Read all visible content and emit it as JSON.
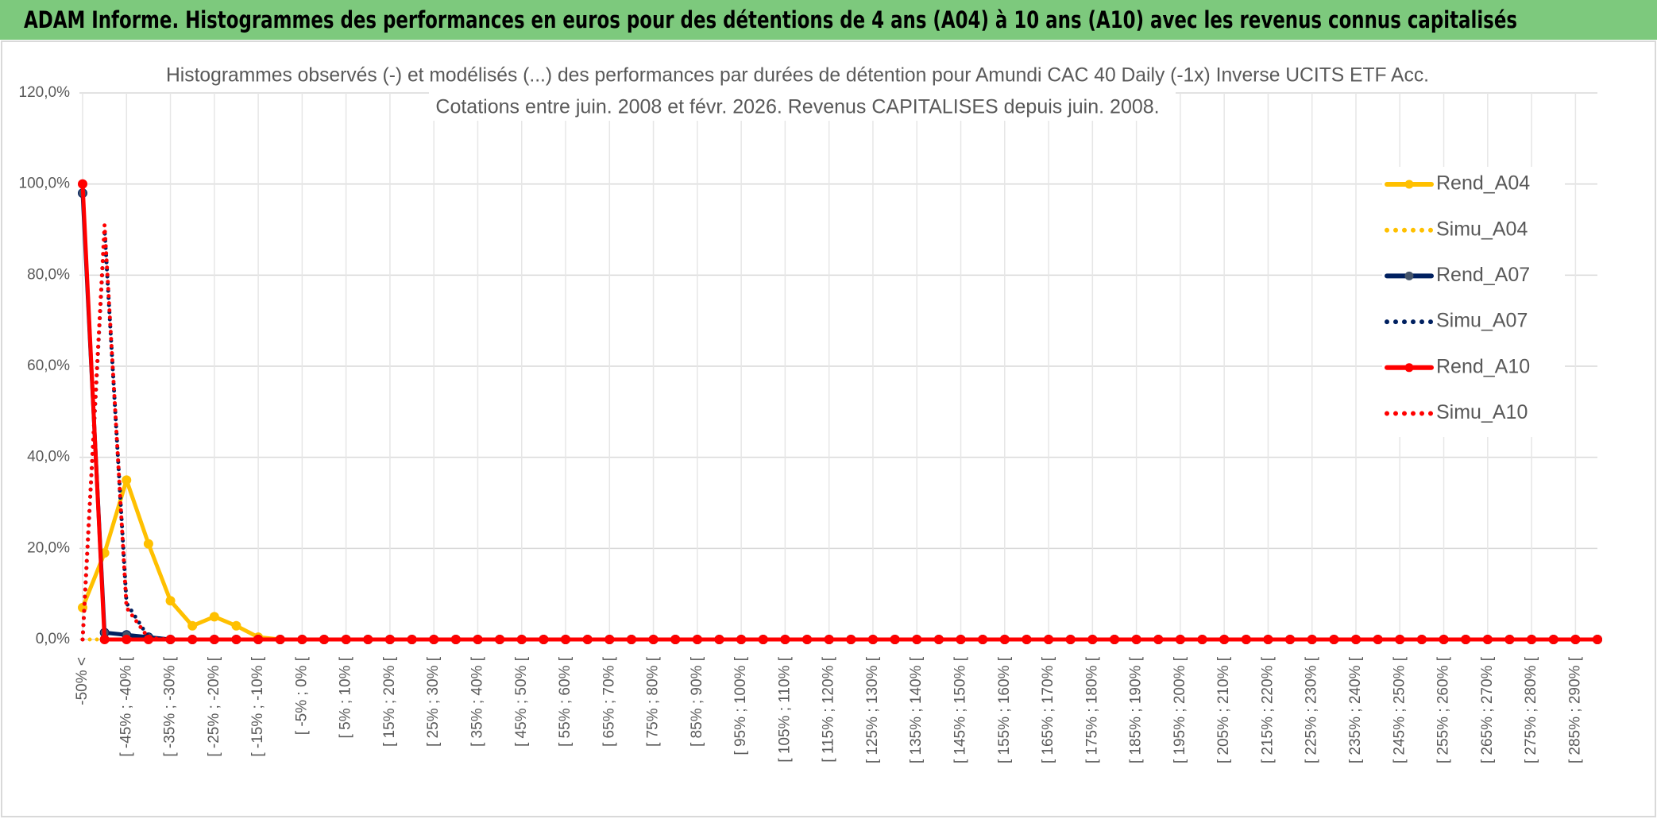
{
  "header": {
    "title": "ADAM Informe. Histogrammes des performances en euros pour des détentions de 4 ans (A04) à 10 ans (A10) avec les revenus connus capitalisés"
  },
  "chart_data": {
    "type": "line",
    "title": "Histogrammes observés (-) et modélisés (...) des performances par durées de détention pour Amundi CAC 40 Daily (-1x) Inverse UCITS ETF Acc.",
    "subtitle": "Cotations entre juin. 2008 et févr. 2026. Revenus CAPITALISES depuis juin. 2008.",
    "categories": [
      "-50% <",
      null,
      "[ -45% ; -40% [",
      null,
      "[ -35% ; -30% [",
      null,
      "[ -25% ; -20% [",
      null,
      "[ -15% ; -10% [",
      null,
      "[ -5% ; 0% [",
      null,
      "[ 5% ; 10% [",
      null,
      "[ 15% ; 20% [",
      null,
      "[ 25% ; 30% [",
      null,
      "[ 35% ; 40% [",
      null,
      "[ 45% ; 50% [",
      null,
      "[ 55% ; 60% [",
      null,
      "[ 65% ; 70% [",
      null,
      "[ 75% ; 80% [",
      null,
      "[ 85% ; 90% [",
      null,
      "[ 95% ; 100% [",
      null,
      "[ 105% ; 110% [",
      null,
      "[ 115% ; 120% [",
      null,
      "[ 125% ; 130% [",
      null,
      "[ 135% ; 140% [",
      null,
      "[ 145% ; 150% [",
      null,
      "[ 155% ; 160% [",
      null,
      "[ 165% ; 170% [",
      null,
      "[ 175% ; 180% [",
      null,
      "[ 185% ; 190% [",
      null,
      "[ 195% ; 200% [",
      null,
      "[ 205% ; 210% [",
      null,
      "[ 215% ; 220% [",
      null,
      "[ 225% ; 230% [",
      null,
      "[ 235% ; 240% [",
      null,
      "[ 245% ; 250% [",
      null,
      "[ 255% ; 260% [",
      null,
      "[ 265% ; 270% [",
      null,
      "[ 275% ; 280% [",
      null,
      "[ 285% ; 290% [",
      null
    ],
    "series": [
      {
        "name": "Rend_A04",
        "color": "#FFC000",
        "style": "solid",
        "values": [
          7,
          19,
          35,
          21,
          8.5,
          3,
          5,
          3,
          0.5,
          0,
          0,
          0,
          0,
          0,
          0,
          0,
          0,
          0,
          0,
          0,
          0,
          0,
          0,
          0,
          0,
          0,
          0,
          0,
          0,
          0,
          0,
          0,
          0,
          0,
          0,
          0,
          0,
          0,
          0,
          0,
          0,
          0,
          0,
          0,
          0,
          0,
          0,
          0,
          0,
          0,
          0,
          0,
          0,
          0,
          0,
          0,
          0,
          0,
          0,
          0,
          0,
          0,
          0,
          0,
          0,
          0,
          0,
          0,
          0,
          0
        ]
      },
      {
        "name": "Simu_A04",
        "color": "#FFC000",
        "style": "dotted",
        "values": [
          0,
          0,
          0,
          0,
          0,
          0,
          0,
          0,
          0,
          0,
          0,
          0,
          0,
          0,
          0,
          0,
          0,
          0,
          0,
          0,
          0,
          0,
          0,
          0,
          0,
          0,
          0,
          0,
          0,
          0,
          0,
          0,
          0,
          0,
          0,
          0,
          0,
          0,
          0,
          0,
          0,
          0,
          0,
          0,
          0,
          0,
          0,
          0,
          0,
          0,
          0,
          0,
          0,
          0,
          0,
          0,
          0,
          0,
          0,
          0,
          0,
          0,
          0,
          0,
          0,
          0,
          0,
          0,
          0,
          0
        ]
      },
      {
        "name": "Rend_A07",
        "color": "#002060",
        "style": "solid",
        "values": [
          98,
          1.5,
          1,
          0.5,
          0,
          0,
          0,
          0,
          0,
          0,
          0,
          0,
          0,
          0,
          0,
          0,
          0,
          0,
          0,
          0,
          0,
          0,
          0,
          0,
          0,
          0,
          0,
          0,
          0,
          0,
          0,
          0,
          0,
          0,
          0,
          0,
          0,
          0,
          0,
          0,
          0,
          0,
          0,
          0,
          0,
          0,
          0,
          0,
          0,
          0,
          0,
          0,
          0,
          0,
          0,
          0,
          0,
          0,
          0,
          0,
          0,
          0,
          0,
          0,
          0,
          0,
          0,
          0,
          0,
          0
        ]
      },
      {
        "name": "Simu_A07",
        "color": "#002060",
        "style": "dotted",
        "values": [
          0,
          90,
          8,
          0.5,
          0,
          0,
          0,
          0,
          0,
          0,
          0,
          0,
          0,
          0,
          0,
          0,
          0,
          0,
          0,
          0,
          0,
          0,
          0,
          0,
          0,
          0,
          0,
          0,
          0,
          0,
          0,
          0,
          0,
          0,
          0,
          0,
          0,
          0,
          0,
          0,
          0,
          0,
          0,
          0,
          0,
          0,
          0,
          0,
          0,
          0,
          0,
          0,
          0,
          0,
          0,
          0,
          0,
          0,
          0,
          0,
          0,
          0,
          0,
          0,
          0,
          0,
          0,
          0,
          0,
          0
        ]
      },
      {
        "name": "Rend_A10",
        "color": "#FF0000",
        "style": "solid",
        "values": [
          100,
          0,
          0,
          0,
          0,
          0,
          0,
          0,
          0,
          0,
          0,
          0,
          0,
          0,
          0,
          0,
          0,
          0,
          0,
          0,
          0,
          0,
          0,
          0,
          0,
          0,
          0,
          0,
          0,
          0,
          0,
          0,
          0,
          0,
          0,
          0,
          0,
          0,
          0,
          0,
          0,
          0,
          0,
          0,
          0,
          0,
          0,
          0,
          0,
          0,
          0,
          0,
          0,
          0,
          0,
          0,
          0,
          0,
          0,
          0,
          0,
          0,
          0,
          0,
          0,
          0,
          0,
          0,
          0,
          0
        ]
      },
      {
        "name": "Simu_A10",
        "color": "#FF0000",
        "style": "dotted",
        "values": [
          0,
          91,
          7,
          0.3,
          0,
          0,
          0,
          0,
          0,
          0,
          0,
          0,
          0,
          0,
          0,
          0,
          0,
          0,
          0,
          0,
          0,
          0,
          0,
          0,
          0,
          0,
          0,
          0,
          0,
          0,
          0,
          0,
          0,
          0,
          0,
          0,
          0,
          0,
          0,
          0,
          0,
          0,
          0,
          0,
          0,
          0,
          0,
          0,
          0,
          0,
          0,
          0,
          0,
          0,
          0,
          0,
          0,
          0,
          0,
          0,
          0,
          0,
          0,
          0,
          0,
          0,
          0,
          0,
          0,
          0
        ]
      }
    ],
    "ylim": [
      0,
      120
    ],
    "yticks": [
      {
        "value": 0,
        "label": "0,0%"
      },
      {
        "value": 20,
        "label": "20,0%"
      },
      {
        "value": 40,
        "label": "40,0%"
      },
      {
        "value": 60,
        "label": "60,0%"
      },
      {
        "value": 80,
        "label": "80,0%"
      },
      {
        "value": 100,
        "label": "100,0%"
      },
      {
        "value": 120,
        "label": "120,0%"
      }
    ],
    "grid": true,
    "legend": "right"
  }
}
